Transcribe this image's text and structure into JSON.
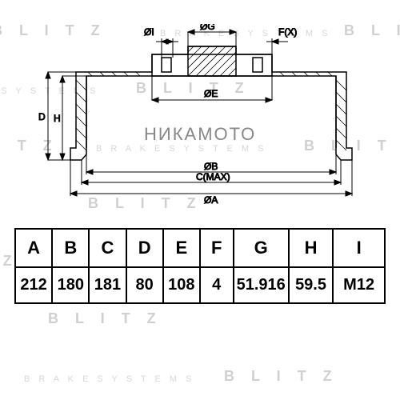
{
  "watermarks": {
    "blitz": "B L I T Z",
    "brake": "B R A K E   S Y S T E M S"
  },
  "center_text": "НИКАМОТО",
  "diagram": {
    "stroke": "#000000",
    "hatch": "#333333",
    "labels": {
      "D": "D",
      "H": "H",
      "OI": "ØI",
      "OG": "ØG",
      "FX": "F(X)",
      "OE": "ØE",
      "OB": "ØB",
      "CMAX": "C(MAX)",
      "OA": "ØA"
    }
  },
  "table": {
    "headers": [
      "A",
      "B",
      "C",
      "D",
      "E",
      "F",
      "G",
      "H",
      "I"
    ],
    "values": [
      "212",
      "180",
      "181",
      "80",
      "108",
      "4",
      "51.916",
      "59.5",
      "M12"
    ],
    "col_widths_pct": [
      10,
      10,
      10,
      10,
      10,
      9,
      15,
      12,
      14
    ]
  },
  "colors": {
    "bg": "#ffffff",
    "line": "#000000",
    "watermark": "#d0d0d0",
    "center": "#888888"
  }
}
